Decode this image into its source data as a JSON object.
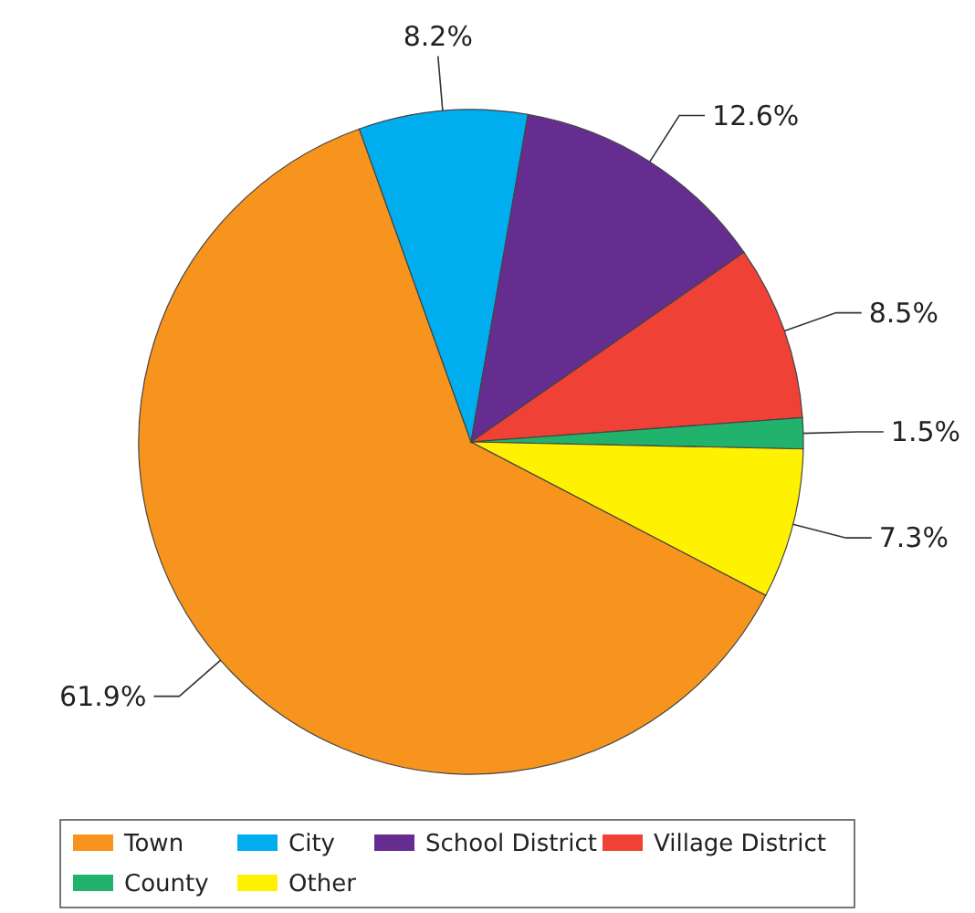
{
  "chart_data": {
    "type": "pie",
    "categories": [
      "Town",
      "City",
      "School District",
      "Village District",
      "County",
      "Other"
    ],
    "values": [
      61.9,
      8.2,
      12.6,
      8.5,
      1.5,
      7.3
    ],
    "colors": [
      "#f7941d",
      "#00aeef",
      "#662d91",
      "#ef4136",
      "#21b36b",
      "#fff200"
    ],
    "value_labels": [
      "61.9%",
      "8.2%",
      "12.6%",
      "8.5%",
      "1.5%",
      "7.3%"
    ],
    "legend": "bottom"
  }
}
